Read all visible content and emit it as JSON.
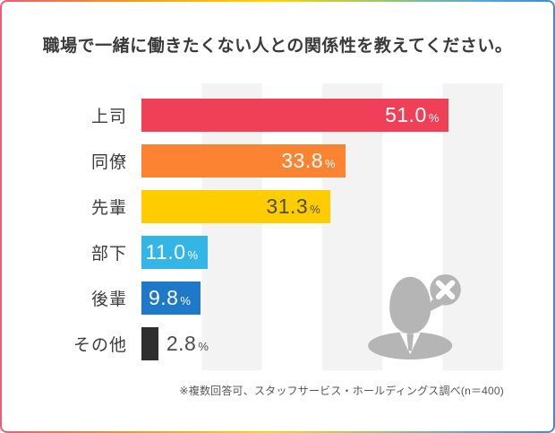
{
  "title": "職場で一緒に働きたくない人との関係性を教えてください。",
  "footnote": "※複数回答可、スタッフサービス・ホールディングス調べ(n＝400)",
  "chart_data": {
    "type": "bar",
    "orientation": "horizontal",
    "title": "職場で一緒に働きたくない人との関係性を教えてください。",
    "categories": [
      "上司",
      "同僚",
      "先輩",
      "部下",
      "後輩",
      "その他"
    ],
    "values": [
      51.0,
      33.8,
      31.3,
      11.0,
      9.8,
      2.8
    ],
    "unit": "%",
    "xlim": [
      0,
      60
    ],
    "grid_band_interval": 10,
    "grid_bands": "alternating vertical stripes every 10%, gray on 10-20 / 30-40 / 50-60",
    "bar_colors": [
      "#ef4057",
      "#fc8332",
      "#ffcc00",
      "#33b5e5",
      "#1e79c8",
      "#2e2e2e"
    ],
    "value_placement": [
      "inside",
      "inside",
      "inside",
      "inside",
      "inside",
      "outside"
    ],
    "value_text_colors": [
      "#ffffff",
      "#ffffff",
      "#4d4d4d",
      "#ffffff",
      "#ffffff",
      "#4d4d4d"
    ],
    "legend": "none",
    "note": "※複数回答可、スタッフサービス・ホールディングス調べ(n＝400)"
  },
  "icon": {
    "name": "person-with-x-speech-bubble",
    "color": "#b5b5b5",
    "x_mark_color": "#ffffff"
  },
  "colors": {
    "stripe": "#f3f3f3",
    "title_text": "#3a3a3a",
    "label_text": "#3c3c3c",
    "note_text": "#555555",
    "border_gradient_left": "#ef5a7a",
    "border_gradient_mid": "#ffd400",
    "border_gradient_right": "#3c8dd0"
  }
}
